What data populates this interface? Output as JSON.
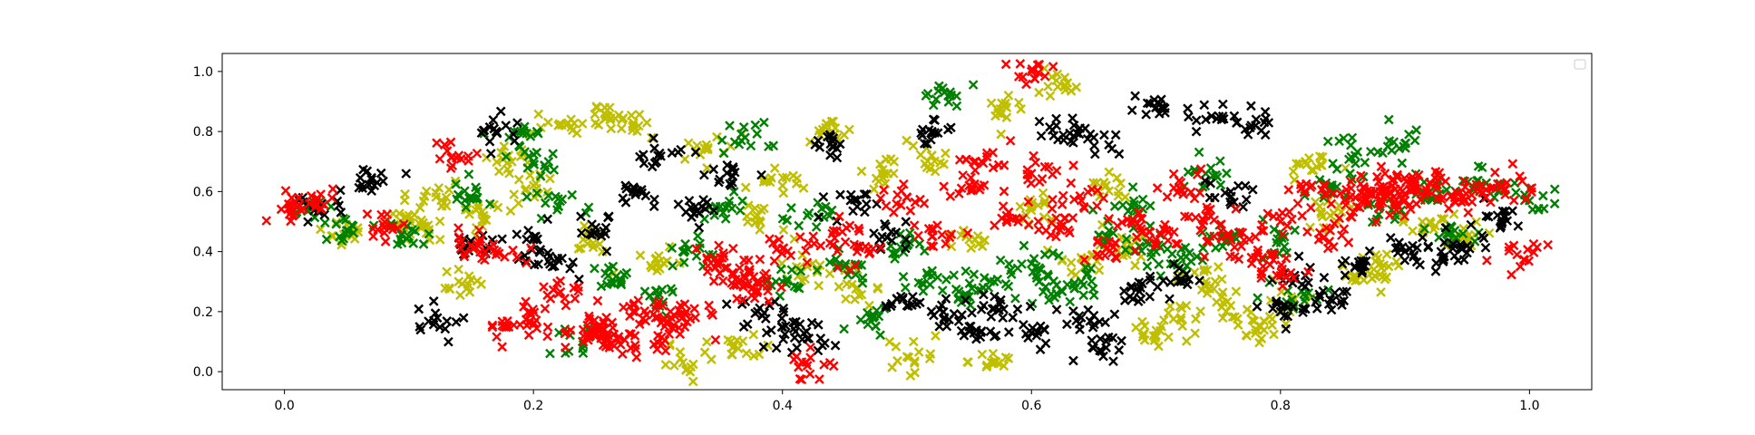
{
  "chart_data": {
    "type": "scatter",
    "title": "",
    "xlabel": "",
    "ylabel": "",
    "xlim": [
      -0.05,
      1.05
    ],
    "ylim": [
      -0.06,
      1.06
    ],
    "xticks": [
      "0.0",
      "0.2",
      "0.4",
      "0.6",
      "0.8",
      "1.0"
    ],
    "yticks": [
      "0.0",
      "0.2",
      "0.4",
      "0.6",
      "0.8",
      "1.0"
    ],
    "marker": "x",
    "grid": false,
    "legend": {
      "placement": "top-right",
      "entries": []
    },
    "series": [
      {
        "color": "#ff0000",
        "points": [
          [
            0.01,
            0.55
          ],
          [
            0.02,
            0.56
          ],
          [
            0.08,
            0.48
          ],
          [
            0.14,
            0.72
          ],
          [
            0.15,
            0.42
          ],
          [
            0.17,
            0.39
          ],
          [
            0.18,
            0.15
          ],
          [
            0.2,
            0.16
          ],
          [
            0.22,
            0.26
          ],
          [
            0.24,
            0.14
          ],
          [
            0.25,
            0.13
          ],
          [
            0.26,
            0.12
          ],
          [
            0.27,
            0.09
          ],
          [
            0.28,
            0.2
          ],
          [
            0.3,
            0.12
          ],
          [
            0.31,
            0.2
          ],
          [
            0.33,
            0.18
          ],
          [
            0.35,
            0.38
          ],
          [
            0.36,
            0.33
          ],
          [
            0.37,
            0.31
          ],
          [
            0.38,
            0.27
          ],
          [
            0.4,
            0.41
          ],
          [
            0.42,
            0.02
          ],
          [
            0.44,
            0.46
          ],
          [
            0.46,
            0.4
          ],
          [
            0.5,
            0.58
          ],
          [
            0.52,
            0.45
          ],
          [
            0.55,
            0.62
          ],
          [
            0.56,
            0.7
          ],
          [
            0.58,
            0.52
          ],
          [
            0.6,
            0.66
          ],
          [
            0.6,
            1.0
          ],
          [
            0.62,
            0.48
          ],
          [
            0.64,
            0.57
          ],
          [
            0.66,
            0.41
          ],
          [
            0.68,
            0.5
          ],
          [
            0.7,
            0.44
          ],
          [
            0.72,
            0.63
          ],
          [
            0.74,
            0.52
          ],
          [
            0.76,
            0.44
          ],
          [
            0.78,
            0.38
          ],
          [
            0.8,
            0.5
          ],
          [
            0.8,
            0.32
          ],
          [
            0.82,
            0.6
          ],
          [
            0.84,
            0.47
          ],
          [
            0.86,
            0.58
          ],
          [
            0.87,
            0.56
          ],
          [
            0.88,
            0.6
          ],
          [
            0.89,
            0.62
          ],
          [
            0.9,
            0.57
          ],
          [
            0.91,
            0.6
          ],
          [
            0.92,
            0.63
          ],
          [
            0.94,
            0.58
          ],
          [
            0.96,
            0.6
          ],
          [
            0.98,
            0.61
          ],
          [
            0.99,
            0.39
          ]
        ]
      },
      {
        "color": "#008000",
        "points": [
          [
            0.02,
            0.55
          ],
          [
            0.05,
            0.47
          ],
          [
            0.1,
            0.45
          ],
          [
            0.15,
            0.58
          ],
          [
            0.19,
            0.8
          ],
          [
            0.2,
            0.7
          ],
          [
            0.22,
            0.55
          ],
          [
            0.24,
            0.09
          ],
          [
            0.26,
            0.32
          ],
          [
            0.3,
            0.25
          ],
          [
            0.32,
            0.4
          ],
          [
            0.35,
            0.55
          ],
          [
            0.37,
            0.78
          ],
          [
            0.4,
            0.3
          ],
          [
            0.42,
            0.52
          ],
          [
            0.45,
            0.35
          ],
          [
            0.47,
            0.18
          ],
          [
            0.5,
            0.42
          ],
          [
            0.52,
            0.32
          ],
          [
            0.53,
            0.93
          ],
          [
            0.55,
            0.25
          ],
          [
            0.57,
            0.3
          ],
          [
            0.6,
            0.36
          ],
          [
            0.62,
            0.26
          ],
          [
            0.64,
            0.3
          ],
          [
            0.66,
            0.45
          ],
          [
            0.68,
            0.55
          ],
          [
            0.7,
            0.4
          ],
          [
            0.72,
            0.38
          ],
          [
            0.74,
            0.66
          ],
          [
            0.76,
            0.45
          ],
          [
            0.8,
            0.43
          ],
          [
            0.82,
            0.25
          ],
          [
            0.84,
            0.62
          ],
          [
            0.86,
            0.72
          ],
          [
            0.88,
            0.55
          ],
          [
            0.9,
            0.76
          ],
          [
            0.92,
            0.6
          ],
          [
            0.94,
            0.47
          ],
          [
            0.96,
            0.62
          ],
          [
            1.0,
            0.57
          ]
        ]
      },
      {
        "color": "#000000",
        "points": [
          [
            0.03,
            0.56
          ],
          [
            0.07,
            0.64
          ],
          [
            0.12,
            0.17
          ],
          [
            0.15,
            0.42
          ],
          [
            0.17,
            0.8
          ],
          [
            0.2,
            0.44
          ],
          [
            0.22,
            0.37
          ],
          [
            0.25,
            0.48
          ],
          [
            0.28,
            0.6
          ],
          [
            0.3,
            0.72
          ],
          [
            0.33,
            0.55
          ],
          [
            0.36,
            0.65
          ],
          [
            0.38,
            0.2
          ],
          [
            0.4,
            0.15
          ],
          [
            0.42,
            0.11
          ],
          [
            0.44,
            0.75
          ],
          [
            0.46,
            0.55
          ],
          [
            0.48,
            0.45
          ],
          [
            0.5,
            0.22
          ],
          [
            0.52,
            0.8
          ],
          [
            0.53,
            0.18
          ],
          [
            0.55,
            0.15
          ],
          [
            0.57,
            0.21
          ],
          [
            0.6,
            0.13
          ],
          [
            0.62,
            0.82
          ],
          [
            0.64,
            0.18
          ],
          [
            0.65,
            0.78
          ],
          [
            0.66,
            0.08
          ],
          [
            0.68,
            0.28
          ],
          [
            0.7,
            0.88
          ],
          [
            0.72,
            0.3
          ],
          [
            0.74,
            0.84
          ],
          [
            0.76,
            0.6
          ],
          [
            0.78,
            0.82
          ],
          [
            0.8,
            0.2
          ],
          [
            0.82,
            0.32
          ],
          [
            0.84,
            0.24
          ],
          [
            0.86,
            0.35
          ],
          [
            0.9,
            0.4
          ],
          [
            0.93,
            0.38
          ],
          [
            0.95,
            0.42
          ],
          [
            0.98,
            0.52
          ]
        ]
      },
      {
        "color": "#bfbf00",
        "points": [
          [
            0.05,
            0.46
          ],
          [
            0.1,
            0.52
          ],
          [
            0.11,
            0.48
          ],
          [
            0.13,
            0.58
          ],
          [
            0.14,
            0.3
          ],
          [
            0.16,
            0.52
          ],
          [
            0.18,
            0.72
          ],
          [
            0.2,
            0.62
          ],
          [
            0.22,
            0.82
          ],
          [
            0.24,
            0.44
          ],
          [
            0.26,
            0.85
          ],
          [
            0.28,
            0.82
          ],
          [
            0.3,
            0.36
          ],
          [
            0.32,
            0.03
          ],
          [
            0.34,
            0.74
          ],
          [
            0.36,
            0.08
          ],
          [
            0.38,
            0.52
          ],
          [
            0.4,
            0.62
          ],
          [
            0.42,
            0.35
          ],
          [
            0.44,
            0.8
          ],
          [
            0.46,
            0.28
          ],
          [
            0.48,
            0.66
          ],
          [
            0.5,
            0.05
          ],
          [
            0.52,
            0.72
          ],
          [
            0.55,
            0.44
          ],
          [
            0.57,
            0.03
          ],
          [
            0.58,
            0.88
          ],
          [
            0.6,
            0.55
          ],
          [
            0.62,
            0.97
          ],
          [
            0.64,
            0.38
          ],
          [
            0.66,
            0.62
          ],
          [
            0.68,
            0.42
          ],
          [
            0.7,
            0.12
          ],
          [
            0.72,
            0.18
          ],
          [
            0.74,
            0.3
          ],
          [
            0.76,
            0.22
          ],
          [
            0.78,
            0.14
          ],
          [
            0.8,
            0.2
          ],
          [
            0.82,
            0.7
          ],
          [
            0.84,
            0.52
          ],
          [
            0.86,
            0.32
          ],
          [
            0.88,
            0.36
          ],
          [
            0.92,
            0.5
          ],
          [
            0.95,
            0.45
          ]
        ]
      }
    ]
  }
}
